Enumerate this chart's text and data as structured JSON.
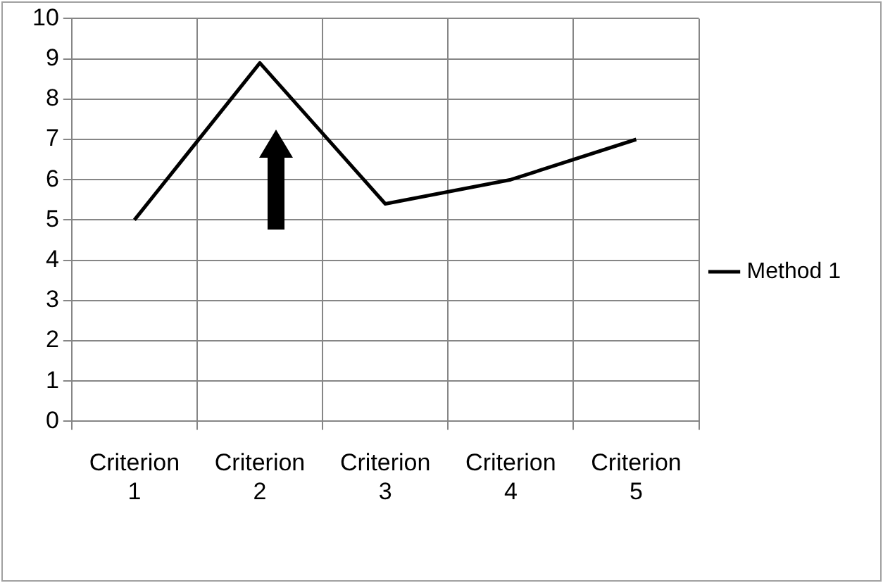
{
  "chart_data": {
    "type": "line",
    "categories": [
      "Criterion 1",
      "Criterion 2",
      "Criterion 3",
      "Criterion 4",
      "Criterion 5"
    ],
    "series": [
      {
        "name": "Method 1",
        "color": "#000000",
        "values": [
          5,
          8.9,
          5.4,
          6,
          7
        ]
      }
    ],
    "ylim": [
      0,
      10
    ],
    "yticks": [
      0,
      1,
      2,
      3,
      4,
      5,
      6,
      7,
      8,
      9,
      10
    ],
    "grid": true,
    "legend": "right",
    "marker": "none"
  }
}
